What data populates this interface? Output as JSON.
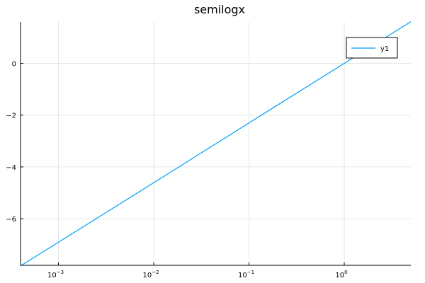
{
  "chart_data": {
    "type": "line",
    "title": "semilogx",
    "xlabel": "",
    "ylabel": "",
    "xscale": "log",
    "xlim": [
      0.0004,
      5
    ],
    "ylim": [
      -7.8,
      1.6
    ],
    "grid": true,
    "legend_position": "top-right",
    "x_ticks": [
      {
        "value": 0.001,
        "base": "10",
        "exp": "−3"
      },
      {
        "value": 0.01,
        "base": "10",
        "exp": "−2"
      },
      {
        "value": 0.1,
        "base": "10",
        "exp": "−1"
      },
      {
        "value": 1,
        "base": "10",
        "exp": "0"
      }
    ],
    "y_ticks": [
      {
        "value": 0,
        "label": "0"
      },
      {
        "value": -2,
        "label": "−2"
      },
      {
        "value": -4,
        "label": "−4"
      },
      {
        "value": -6,
        "label": "−6"
      }
    ],
    "series": [
      {
        "name": "y1",
        "color": "#009AFA",
        "x": [
          0.0004,
          0.001,
          0.01,
          0.1,
          1,
          5
        ],
        "y": [
          -7.82,
          -6.91,
          -4.61,
          -2.3,
          0.0,
          1.61
        ]
      }
    ]
  }
}
